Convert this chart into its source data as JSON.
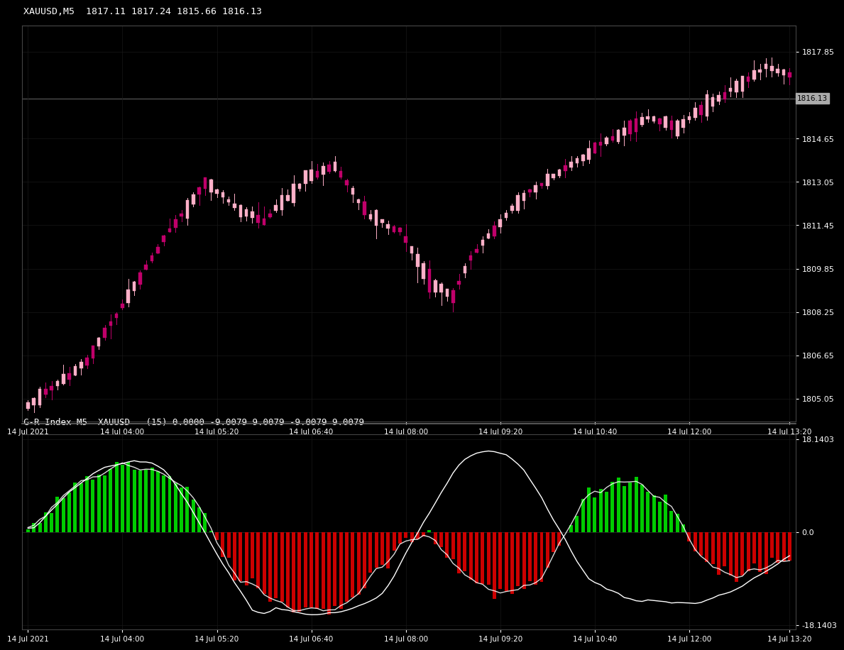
{
  "title_main": "XAUUSD,M5  1817.11 1817.24 1815.66 1816.13",
  "title_sub": "C-R Index M5  XAUUSD   (15) 0.0000 -9.0079 9.0079 -9.0079 9.0079",
  "price_label": "1816.13",
  "bg_color": "#000000",
  "text_color": "#ffffff",
  "grid_color": "#181818",
  "border_color": "#444444",
  "up_candle_color": "#ffb0c8",
  "down_candle_color": "#c0006a",
  "up_wick_color": "#ffb0c8",
  "down_wick_color": "#c0006a",
  "price_line_color": "#888888",
  "y_ticks_main": [
    1805.05,
    1806.65,
    1808.25,
    1809.85,
    1811.45,
    1813.05,
    1814.65,
    1817.85
  ],
  "y_ticks_sub": [
    -18.1403,
    0.0,
    18.1403
  ],
  "n_candles": 130,
  "price_min": 1804.2,
  "price_max": 1818.8,
  "indicator_min": -19.0,
  "indicator_max": 19.0,
  "time_labels": [
    "14 Jul 2021",
    "14 Jul 04:00",
    "14 Jul 05:20",
    "14 Jul 06:40",
    "14 Jul 08:00",
    "14 Jul 09:20",
    "14 Jul 10:40",
    "14 Jul 12:00",
    "14 Jul 13:20"
  ]
}
